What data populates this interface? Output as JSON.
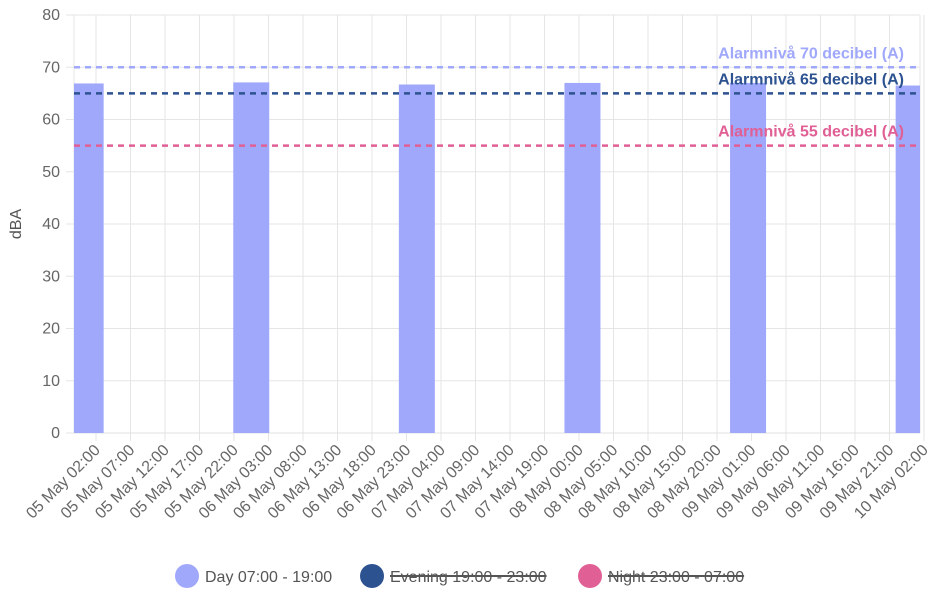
{
  "chart_data": {
    "type": "bar",
    "ylabel": "dBA",
    "ylim": [
      0,
      80
    ],
    "yticks": [
      "0",
      "10",
      "20",
      "30",
      "40",
      "50",
      "60",
      "70",
      "80"
    ],
    "grid": true,
    "categories": [
      "05 May 02:00",
      "05 May 07:00",
      "05 May 12:00",
      "05 May 17:00",
      "05 May 22:00",
      "06 May 03:00",
      "06 May 08:00",
      "06 May 13:00",
      "06 May 18:00",
      "06 May 23:00",
      "07 May 04:00",
      "07 May 09:00",
      "07 May 14:00",
      "07 May 19:00",
      "08 May 00:00",
      "08 May 05:00",
      "08 May 10:00",
      "08 May 15:00",
      "08 May 20:00",
      "09 May 01:00",
      "09 May 06:00",
      "09 May 11:00",
      "09 May 16:00",
      "09 May 21:00",
      "10 May 02:00"
    ],
    "series": [
      {
        "name": "Day 07:00 - 19:00",
        "color": "#a0a8fb",
        "hidden": false,
        "bars": [
          {
            "start": "05 May 00:00",
            "end": "05 May 01:00",
            "value": 66.9
          },
          {
            "start": "06 May 00:00",
            "end": "06 May 01:00",
            "value": 67.1
          },
          {
            "start": "07 May 00:00",
            "end": "07 May 01:00",
            "value": 66.7
          },
          {
            "start": "08 May 00:00",
            "end": "08 May 01:00",
            "value": 67.0
          },
          {
            "start": "09 May 00:00",
            "end": "09 May 01:00",
            "value": 67.0
          },
          {
            "start": "10 May 00:00",
            "end": "10 May 01:00",
            "value": 66.5
          }
        ]
      },
      {
        "name": "Evening 19:00 - 23:00",
        "color": "#2d5290",
        "hidden": true,
        "bars": []
      },
      {
        "name": "Night 23:00 - 07:00",
        "color": "#e05f95",
        "hidden": true,
        "bars": []
      }
    ],
    "annotations": [
      {
        "label": "Alarmnivå 70 decibel (A)",
        "value": 70,
        "color": "#a0a8fb"
      },
      {
        "label": "Alarmnivå 65 decibel (A)",
        "value": 65,
        "color": "#2d5290"
      },
      {
        "label": "Alarmnivå 55 decibel (A)",
        "value": 55,
        "color": "#e05f95"
      }
    ],
    "legend_position": "bottom"
  }
}
